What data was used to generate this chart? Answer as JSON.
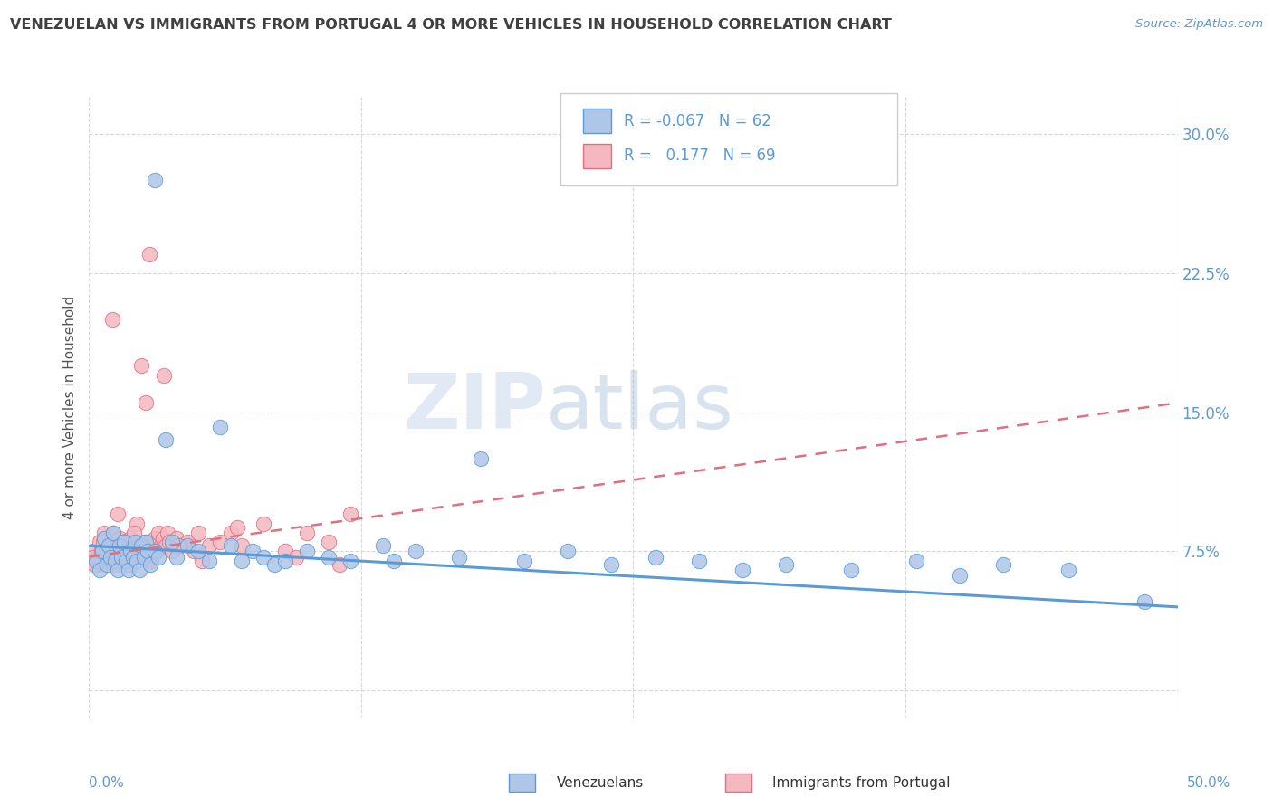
{
  "title": "VENEZUELAN VS IMMIGRANTS FROM PORTUGAL 4 OR MORE VEHICLES IN HOUSEHOLD CORRELATION CHART",
  "source": "Source: ZipAtlas.com",
  "ylabel": "4 or more Vehicles in Household",
  "xlim": [
    0.0,
    50.0
  ],
  "ylim": [
    -1.5,
    32.0
  ],
  "yticks": [
    0.0,
    7.5,
    15.0,
    22.5,
    30.0
  ],
  "xticks": [
    0.0,
    12.5,
    25.0,
    37.5,
    50.0
  ],
  "background_color": "#ffffff",
  "grid_color": "#d8d8d8",
  "title_color": "#404040",
  "axis_color": "#5b9bd5",
  "venezuelan_color": "#aec6e8",
  "venezuela_edge": "#5b9bd5",
  "portugal_color": "#f4b8c1",
  "portugal_edge": "#e07080",
  "watermark_zip": "ZIP",
  "watermark_atlas": "atlas",
  "legend_R1": "-0.067",
  "legend_N1": "62",
  "legend_R2": "0.177",
  "legend_N2": "69",
  "venezuelan_scatter": [
    [
      0.3,
      7.0
    ],
    [
      0.5,
      6.5
    ],
    [
      0.6,
      7.5
    ],
    [
      0.7,
      8.2
    ],
    [
      0.8,
      6.8
    ],
    [
      0.9,
      7.8
    ],
    [
      1.0,
      7.2
    ],
    [
      1.1,
      8.5
    ],
    [
      1.2,
      7.0
    ],
    [
      1.3,
      6.5
    ],
    [
      1.4,
      7.8
    ],
    [
      1.5,
      7.2
    ],
    [
      1.6,
      8.0
    ],
    [
      1.7,
      7.0
    ],
    [
      1.8,
      6.5
    ],
    [
      1.9,
      7.5
    ],
    [
      2.0,
      7.2
    ],
    [
      2.1,
      8.0
    ],
    [
      2.2,
      7.0
    ],
    [
      2.3,
      6.5
    ],
    [
      2.4,
      7.8
    ],
    [
      2.5,
      7.2
    ],
    [
      2.6,
      8.0
    ],
    [
      2.7,
      7.5
    ],
    [
      2.8,
      6.8
    ],
    [
      3.0,
      7.5
    ],
    [
      3.2,
      7.2
    ],
    [
      3.5,
      13.5
    ],
    [
      3.8,
      8.0
    ],
    [
      4.0,
      7.2
    ],
    [
      4.5,
      7.8
    ],
    [
      5.0,
      7.5
    ],
    [
      5.5,
      7.0
    ],
    [
      6.0,
      14.2
    ],
    [
      6.5,
      7.8
    ],
    [
      7.0,
      7.0
    ],
    [
      7.5,
      7.5
    ],
    [
      8.0,
      7.2
    ],
    [
      8.5,
      6.8
    ],
    [
      9.0,
      7.0
    ],
    [
      10.0,
      7.5
    ],
    [
      11.0,
      7.2
    ],
    [
      12.0,
      7.0
    ],
    [
      13.5,
      7.8
    ],
    [
      14.0,
      7.0
    ],
    [
      15.0,
      7.5
    ],
    [
      17.0,
      7.2
    ],
    [
      18.0,
      12.5
    ],
    [
      20.0,
      7.0
    ],
    [
      22.0,
      7.5
    ],
    [
      24.0,
      6.8
    ],
    [
      26.0,
      7.2
    ],
    [
      28.0,
      7.0
    ],
    [
      30.0,
      6.5
    ],
    [
      32.0,
      6.8
    ],
    [
      35.0,
      6.5
    ],
    [
      38.0,
      7.0
    ],
    [
      40.0,
      6.2
    ],
    [
      42.0,
      6.8
    ],
    [
      45.0,
      6.5
    ],
    [
      48.5,
      4.8
    ],
    [
      3.0,
      27.5
    ]
  ],
  "portugal_scatter": [
    [
      0.2,
      7.5
    ],
    [
      0.3,
      6.8
    ],
    [
      0.4,
      7.2
    ],
    [
      0.5,
      8.0
    ],
    [
      0.6,
      7.5
    ],
    [
      0.7,
      8.5
    ],
    [
      0.8,
      7.0
    ],
    [
      0.9,
      7.8
    ],
    [
      1.0,
      7.2
    ],
    [
      1.05,
      20.0
    ],
    [
      1.1,
      8.5
    ],
    [
      1.2,
      7.5
    ],
    [
      1.3,
      9.5
    ],
    [
      1.4,
      8.2
    ],
    [
      1.5,
      7.5
    ],
    [
      1.6,
      8.0
    ],
    [
      1.7,
      7.5
    ],
    [
      1.8,
      6.8
    ],
    [
      1.9,
      8.2
    ],
    [
      2.0,
      7.8
    ],
    [
      2.1,
      7.5
    ],
    [
      2.2,
      9.0
    ],
    [
      2.3,
      7.5
    ],
    [
      2.4,
      17.5
    ],
    [
      2.5,
      8.0
    ],
    [
      2.6,
      15.5
    ],
    [
      2.7,
      7.5
    ],
    [
      2.75,
      23.5
    ],
    [
      2.8,
      8.0
    ],
    [
      2.9,
      7.8
    ],
    [
      3.0,
      8.2
    ],
    [
      3.1,
      7.5
    ],
    [
      3.2,
      8.5
    ],
    [
      3.3,
      7.8
    ],
    [
      3.4,
      8.2
    ],
    [
      3.45,
      17.0
    ],
    [
      3.5,
      7.8
    ],
    [
      3.6,
      8.5
    ],
    [
      3.7,
      8.0
    ],
    [
      3.8,
      7.5
    ],
    [
      4.0,
      8.2
    ],
    [
      4.2,
      7.8
    ],
    [
      4.5,
      8.0
    ],
    [
      4.8,
      7.5
    ],
    [
      5.0,
      8.5
    ],
    [
      5.5,
      7.8
    ],
    [
      6.0,
      8.0
    ],
    [
      6.5,
      8.5
    ],
    [
      7.0,
      7.8
    ],
    [
      8.0,
      9.0
    ],
    [
      9.0,
      7.5
    ],
    [
      10.0,
      8.5
    ],
    [
      11.0,
      8.0
    ],
    [
      12.0,
      9.5
    ],
    [
      0.15,
      7.2
    ],
    [
      0.25,
      6.8
    ],
    [
      0.55,
      7.5
    ],
    [
      0.65,
      8.0
    ],
    [
      1.05,
      7.5
    ],
    [
      1.15,
      6.8
    ],
    [
      1.55,
      8.0
    ],
    [
      2.05,
      8.5
    ],
    [
      2.45,
      7.2
    ],
    [
      2.85,
      7.0
    ],
    [
      4.1,
      7.8
    ],
    [
      5.2,
      7.0
    ],
    [
      6.8,
      8.8
    ],
    [
      9.5,
      7.2
    ],
    [
      11.5,
      6.8
    ]
  ],
  "venezuelan_trend_x": [
    0.0,
    50.0
  ],
  "venezuelan_trend_y": [
    7.8,
    4.5
  ],
  "portugal_trend_x": [
    0.0,
    50.0
  ],
  "portugal_trend_y": [
    7.2,
    15.5
  ],
  "footer_labels": [
    "0.0%",
    "Venezuelans",
    "Immigrants from Portugal",
    "50.0%"
  ]
}
